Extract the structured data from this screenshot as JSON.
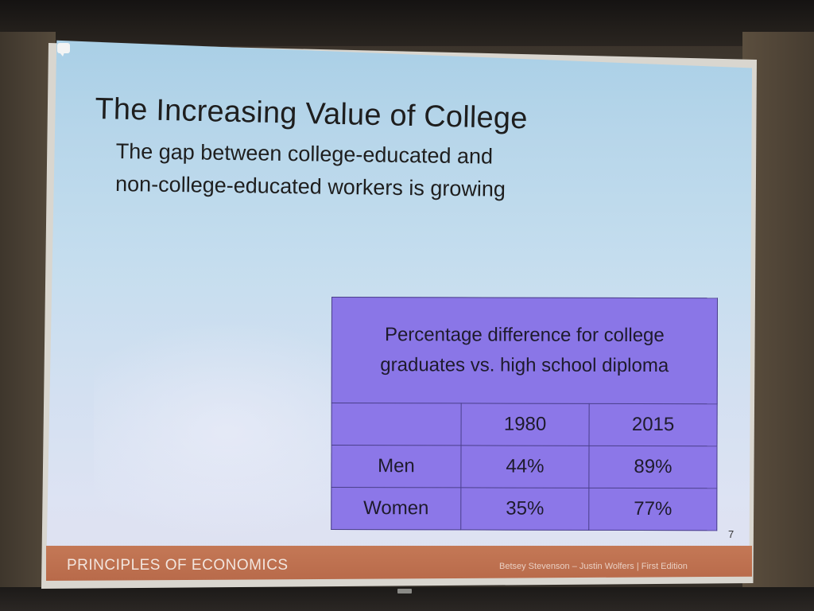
{
  "slide": {
    "title": "The Increasing Value of College",
    "subtitle_line1": "The gap between college-educated and",
    "subtitle_line2": "non-college-educated workers is growing",
    "slide_number": "7"
  },
  "table": {
    "caption_line1": "Percentage difference for college",
    "caption_line2": "graduates vs. high school diploma",
    "columns": [
      "",
      "1980",
      "2015"
    ],
    "rows": [
      {
        "label": "Men",
        "values": [
          "44%",
          "89%"
        ]
      },
      {
        "label": "Women",
        "values": [
          "35%",
          "77%"
        ]
      }
    ]
  },
  "footer": {
    "title": "PRINCIPLES OF ECONOMICS",
    "credit": "Betsey Stevenson – Justin Wolfers | First Edition"
  },
  "icons": [
    "comment-icon"
  ],
  "colors": {
    "table_fill": "#8c77e8",
    "footer_bar": "#c47856"
  }
}
